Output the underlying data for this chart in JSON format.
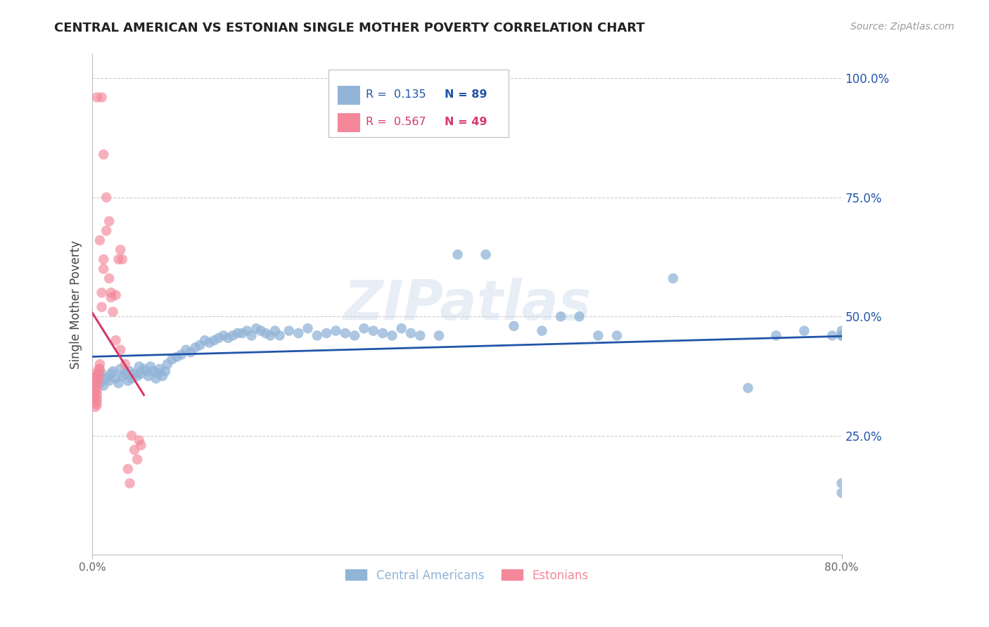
{
  "title": "CENTRAL AMERICAN VS ESTONIAN SINGLE MOTHER POVERTY CORRELATION CHART",
  "source": "Source: ZipAtlas.com",
  "ylabel": "Single Mother Poverty",
  "ytick_labels": [
    "100.0%",
    "75.0%",
    "50.0%",
    "25.0%"
  ],
  "ytick_values": [
    1.0,
    0.75,
    0.5,
    0.25
  ],
  "xmin": 0.0,
  "xmax": 0.8,
  "ymin": 0.0,
  "ymax": 1.05,
  "blue_color": "#92B4D7",
  "pink_color": "#F4879A",
  "blue_line_color": "#2255AA",
  "pink_line_color": "#D63A6A",
  "legend_blue_R": "0.135",
  "legend_blue_N": "89",
  "legend_pink_R": "0.567",
  "legend_pink_N": "49",
  "watermark": "ZIPatlas",
  "watermark_color": "#C5D5E8",
  "grid_color": "#CCCCCC",
  "blue_scatter_x": [
    0.005,
    0.008,
    0.01,
    0.012,
    0.015,
    0.018,
    0.02,
    0.022,
    0.025,
    0.028,
    0.03,
    0.032,
    0.035,
    0.038,
    0.04,
    0.042,
    0.045,
    0.048,
    0.05,
    0.052,
    0.055,
    0.058,
    0.06,
    0.062,
    0.065,
    0.068,
    0.07,
    0.072,
    0.075,
    0.078,
    0.08,
    0.085,
    0.09,
    0.095,
    0.1,
    0.105,
    0.11,
    0.115,
    0.12,
    0.125,
    0.13,
    0.135,
    0.14,
    0.145,
    0.15,
    0.155,
    0.16,
    0.165,
    0.17,
    0.175,
    0.18,
    0.185,
    0.19,
    0.195,
    0.2,
    0.21,
    0.22,
    0.23,
    0.24,
    0.25,
    0.26,
    0.27,
    0.28,
    0.29,
    0.3,
    0.31,
    0.32,
    0.33,
    0.34,
    0.35,
    0.37,
    0.39,
    0.42,
    0.45,
    0.48,
    0.5,
    0.52,
    0.54,
    0.56,
    0.62,
    0.7,
    0.73,
    0.76,
    0.79,
    0.8,
    0.8,
    0.8,
    0.8,
    0.8
  ],
  "blue_scatter_y": [
    0.375,
    0.36,
    0.38,
    0.355,
    0.37,
    0.365,
    0.38,
    0.385,
    0.37,
    0.36,
    0.39,
    0.375,
    0.38,
    0.365,
    0.385,
    0.37,
    0.38,
    0.375,
    0.395,
    0.38,
    0.39,
    0.385,
    0.375,
    0.395,
    0.385,
    0.37,
    0.38,
    0.39,
    0.375,
    0.385,
    0.4,
    0.41,
    0.415,
    0.42,
    0.43,
    0.425,
    0.435,
    0.44,
    0.45,
    0.445,
    0.45,
    0.455,
    0.46,
    0.455,
    0.46,
    0.465,
    0.465,
    0.47,
    0.46,
    0.475,
    0.47,
    0.465,
    0.46,
    0.47,
    0.46,
    0.47,
    0.465,
    0.475,
    0.46,
    0.465,
    0.47,
    0.465,
    0.46,
    0.475,
    0.47,
    0.465,
    0.46,
    0.475,
    0.465,
    0.46,
    0.46,
    0.63,
    0.63,
    0.48,
    0.47,
    0.5,
    0.5,
    0.46,
    0.46,
    0.58,
    0.35,
    0.46,
    0.47,
    0.46,
    0.47,
    0.15,
    0.13,
    0.46,
    0.46
  ],
  "pink_scatter_x": [
    0.003,
    0.003,
    0.003,
    0.003,
    0.003,
    0.003,
    0.003,
    0.003,
    0.005,
    0.005,
    0.005,
    0.005,
    0.005,
    0.005,
    0.005,
    0.007,
    0.007,
    0.007,
    0.008,
    0.008,
    0.01,
    0.01,
    0.012,
    0.012,
    0.015,
    0.018,
    0.02,
    0.022,
    0.025,
    0.028,
    0.03,
    0.032,
    0.035,
    0.038,
    0.04,
    0.042,
    0.045,
    0.048,
    0.05,
    0.052,
    0.01,
    0.015,
    0.02,
    0.025,
    0.03,
    0.005,
    0.008,
    0.012,
    0.018
  ],
  "pink_scatter_y": [
    0.38,
    0.37,
    0.36,
    0.35,
    0.34,
    0.33,
    0.32,
    0.31,
    0.375,
    0.365,
    0.355,
    0.345,
    0.335,
    0.325,
    0.315,
    0.39,
    0.38,
    0.37,
    0.4,
    0.39,
    0.55,
    0.52,
    0.62,
    0.6,
    0.68,
    0.58,
    0.54,
    0.51,
    0.545,
    0.62,
    0.64,
    0.62,
    0.4,
    0.18,
    0.15,
    0.25,
    0.22,
    0.2,
    0.24,
    0.23,
    0.96,
    0.75,
    0.55,
    0.45,
    0.43,
    0.96,
    0.66,
    0.84,
    0.7
  ]
}
